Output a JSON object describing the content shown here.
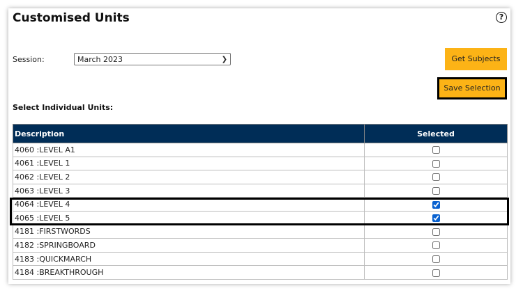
{
  "title": "Customised Units",
  "session": {
    "label": "Session:",
    "value": "March 2023"
  },
  "buttons": {
    "get_subjects": "Get Subjects",
    "save_selection": "Save Selection"
  },
  "subtitle": "Select Individual Units:",
  "table": {
    "headers": [
      "Description",
      "Selected"
    ],
    "rows": [
      {
        "description": "4060 :LEVEL A1",
        "selected": false
      },
      {
        "description": "4061 :LEVEL 1",
        "selected": false
      },
      {
        "description": "4062 :LEVEL 2",
        "selected": false
      },
      {
        "description": "4063 :LEVEL 3",
        "selected": false
      },
      {
        "description": "4064 :LEVEL 4",
        "selected": true
      },
      {
        "description": "4065 :LEVEL 5",
        "selected": true
      },
      {
        "description": "4181 :FIRSTWORDS",
        "selected": false
      },
      {
        "description": "4182 :SPRINGBOARD",
        "selected": false
      },
      {
        "description": "4183 :QUICKMARCH",
        "selected": false
      },
      {
        "description": "4184 :BREAKTHROUGH",
        "selected": false
      }
    ]
  },
  "colors": {
    "header_bg": "#002d57",
    "button": "#fcb316"
  },
  "icons": {
    "help": "question-circle-icon",
    "dropdown": "chevron-down-icon"
  }
}
